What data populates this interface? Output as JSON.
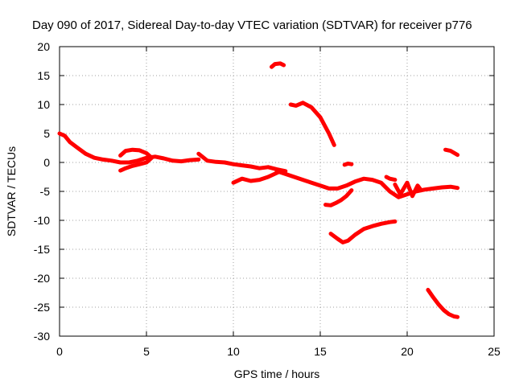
{
  "chart_data": {
    "type": "scatter",
    "title": "Day 090 of 2017, Sidereal Day-to-day VTEC variation (SDTVAR) for receiver p776",
    "xlabel": "GPS time / hours",
    "ylabel": "SDTVAR / TECUs",
    "xlim": [
      0,
      25
    ],
    "ylim": [
      -30,
      20
    ],
    "xticks": [
      "0",
      "5",
      "10",
      "15",
      "20",
      "25"
    ],
    "yticks": [
      "20",
      "15",
      "10",
      "5",
      "0",
      "-5",
      "-10",
      "-15",
      "-20",
      "-25",
      "-30"
    ],
    "grid": true,
    "series_color": "#ff0000",
    "series": [
      {
        "name": "arc-main-1",
        "x": [
          0,
          0.3,
          0.6,
          1.0,
          1.5,
          2.0,
          2.5,
          3.0,
          3.5,
          4.0,
          4.5,
          5.0,
          5.5,
          6.0,
          6.5,
          7.0,
          7.5,
          8.0
        ],
        "y": [
          5,
          4.6,
          3.5,
          2.6,
          1.5,
          0.8,
          0.5,
          0.3,
          0,
          0,
          0.3,
          0.8,
          1,
          0.7,
          0.3,
          0.2,
          0.4,
          0.5
        ]
      },
      {
        "name": "arc-loop-1",
        "x": [
          3.5,
          3.8,
          4.2,
          4.6,
          5.0,
          5.3,
          5.0,
          4.6,
          4.2,
          3.8,
          3.5
        ],
        "y": [
          1.2,
          2,
          2.2,
          2.1,
          1.6,
          0.8,
          0,
          -0.3,
          -0.6,
          -1,
          -1.4
        ]
      },
      {
        "name": "arc-main-2",
        "x": [
          8,
          8.5,
          9.0,
          9.5,
          10.0,
          10.5,
          11.0,
          11.5,
          12.0,
          12.5,
          13.0
        ],
        "y": [
          1.5,
          0.3,
          0.1,
          0,
          -0.3,
          -0.5,
          -0.7,
          -1,
          -0.8,
          -1.2,
          -1.5
        ]
      },
      {
        "name": "arc-low-1",
        "x": [
          10,
          10.5,
          11.0,
          11.5,
          12.0,
          12.5,
          12.8
        ],
        "y": [
          -3.5,
          -2.8,
          -3.2,
          -3,
          -2.5,
          -1.8,
          -1.4
        ]
      },
      {
        "name": "arc-main-3",
        "x": [
          12.5,
          13.0,
          13.5,
          14.0,
          14.5,
          15.0,
          15.5,
          16.0,
          16.5,
          17.0,
          17.5,
          18.0,
          18.5,
          19.0,
          19.5,
          20.0,
          20.5,
          21.0,
          21.5,
          22.0,
          22.5,
          22.9
        ],
        "y": [
          -1.5,
          -2,
          -2.5,
          -3,
          -3.5,
          -4,
          -4.5,
          -4.5,
          -4,
          -3.3,
          -2.8,
          -3,
          -3.5,
          -5,
          -6,
          -5.5,
          -5,
          -4.7,
          -4.5,
          -4.3,
          -4.2,
          -4.4
        ]
      },
      {
        "name": "arc-spread",
        "x": [
          19.3,
          19.6,
          20.0,
          20.3,
          20.6,
          20.8
        ],
        "y": [
          -3.8,
          -5.5,
          -3.5,
          -5.8,
          -4,
          -4.8
        ]
      },
      {
        "name": "arc-peak-17",
        "x": [
          12.2,
          12.4,
          12.7,
          12.9
        ],
        "y": [
          16.5,
          17,
          17.1,
          16.8
        ]
      },
      {
        "name": "arc-peak-10",
        "x": [
          13.3,
          13.6,
          14.0,
          14.5,
          15.0,
          15.5,
          15.8
        ],
        "y": [
          10,
          9.8,
          10.3,
          9.5,
          7.8,
          5,
          3
        ]
      },
      {
        "name": "arc-short-1",
        "x": [
          16.4,
          16.6,
          16.8
        ],
        "y": [
          -0.4,
          -0.2,
          -0.3
        ]
      },
      {
        "name": "arc-mid-neg",
        "x": [
          15.3,
          15.6,
          15.9,
          16.2,
          16.5,
          16.8
        ],
        "y": [
          -7.3,
          -7.4,
          -7,
          -6.5,
          -5.8,
          -4.8
        ]
      },
      {
        "name": "arc-low-2",
        "x": [
          15.6,
          16.0,
          16.3,
          16.6,
          17.0,
          17.5,
          18.0,
          18.5,
          19.0,
          19.3
        ],
        "y": [
          -12.3,
          -13.2,
          -13.8,
          -13.5,
          -12.5,
          -11.5,
          -11,
          -10.6,
          -10.3,
          -10.2
        ]
      },
      {
        "name": "arc-short-2",
        "x": [
          18.8,
          19.0,
          19.3
        ],
        "y": [
          -2.5,
          -2.8,
          -3
        ]
      },
      {
        "name": "arc-short-3",
        "x": [
          22.2,
          22.5,
          22.9
        ],
        "y": [
          2.2,
          2,
          1.3
        ]
      },
      {
        "name": "arc-deep",
        "x": [
          21.2,
          21.5,
          21.8,
          22.1,
          22.4,
          22.7,
          22.9
        ],
        "y": [
          -22,
          -23.3,
          -24.5,
          -25.5,
          -26.2,
          -26.6,
          -26.7
        ]
      }
    ]
  }
}
